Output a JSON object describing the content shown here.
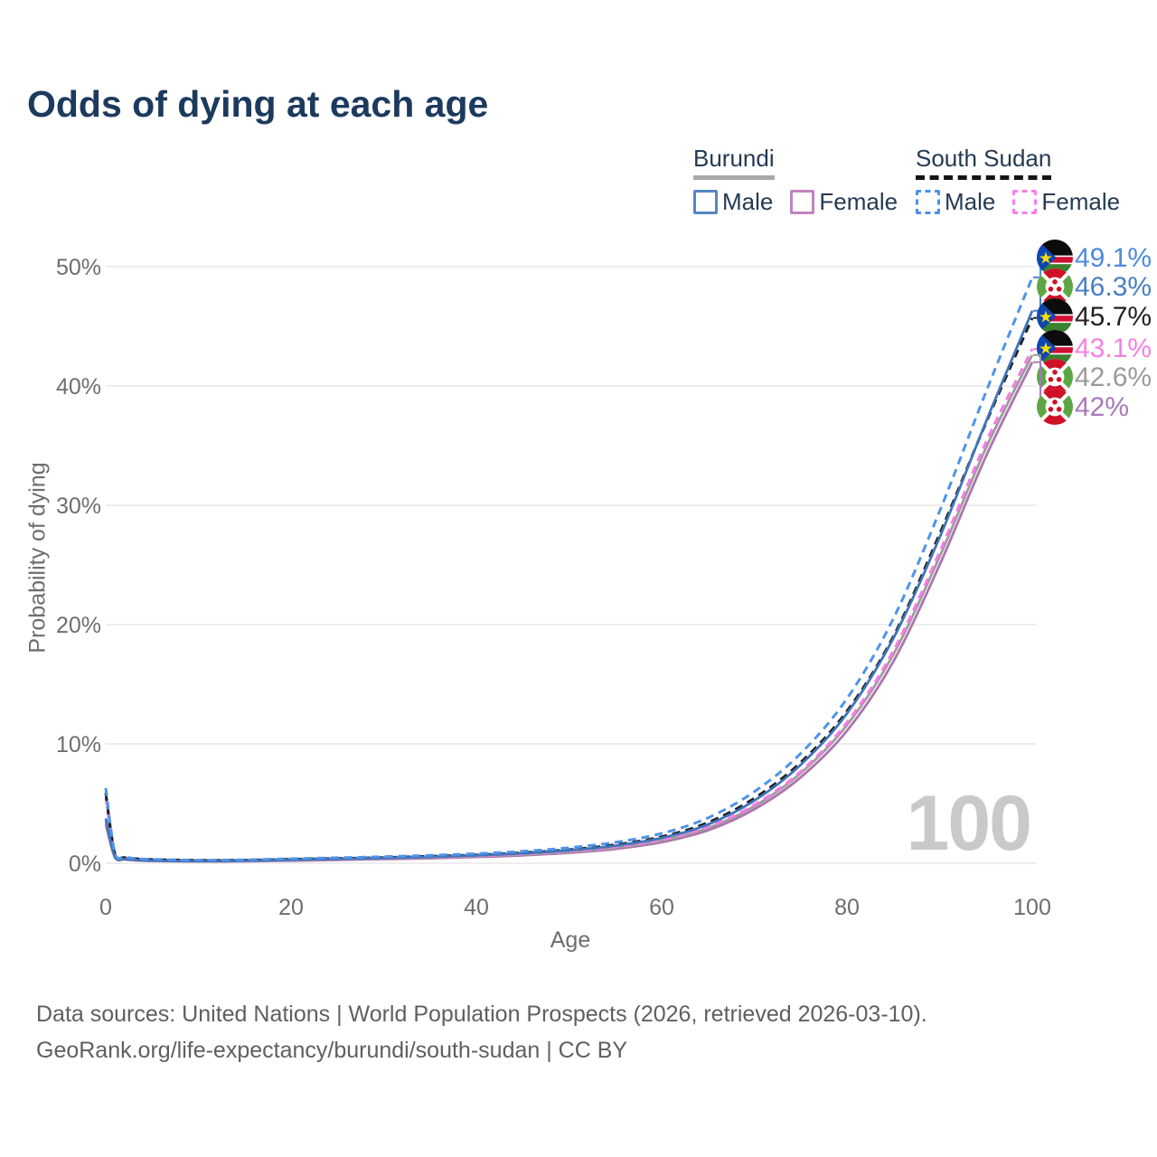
{
  "title": "Odds of dying at each age",
  "watermark_age": "100",
  "axes": {
    "x_label": "Age",
    "y_label": "Probability of dying"
  },
  "legend": {
    "groups": [
      {
        "name": "Burundi",
        "line_style": "solid",
        "underline_color": "#a9a9a9",
        "items": [
          {
            "label": "Male",
            "swatch_color": "#5585c5"
          },
          {
            "label": "Female",
            "swatch_color": "#c083bf"
          }
        ]
      },
      {
        "name": "South Sudan",
        "line_style": "dashed",
        "underline_color": "#141414",
        "items": [
          {
            "label": "Male",
            "swatch_color": "#4a90e8"
          },
          {
            "label": "Female",
            "swatch_color": "#fb7de8"
          }
        ]
      }
    ]
  },
  "footer": {
    "line1": "Data sources: United Nations | World Population Prospects (2026, retrieved 2026-03-10).",
    "line2": "GeoRank.org/life-expectancy/burundi/south-sudan | CC BY"
  },
  "chart_data": {
    "type": "line",
    "title": "Odds of dying at each age",
    "xlabel": "Age",
    "ylabel": "Probability of dying",
    "xlim": [
      0,
      100
    ],
    "ylim": [
      0,
      50
    ],
    "grid": "horizontal",
    "legend_position": "top-right",
    "xticks": [
      {
        "value": 0,
        "label": "0"
      },
      {
        "value": 20,
        "label": "20"
      },
      {
        "value": 40,
        "label": "40"
      },
      {
        "value": 60,
        "label": "60"
      },
      {
        "value": 80,
        "label": "80"
      },
      {
        "value": 100,
        "label": "100"
      }
    ],
    "yticks": [
      {
        "value": 0,
        "label": "0%"
      },
      {
        "value": 10,
        "label": "10%"
      },
      {
        "value": 20,
        "label": "20%"
      },
      {
        "value": 30,
        "label": "30%"
      },
      {
        "value": 40,
        "label": "40%"
      },
      {
        "value": 50,
        "label": "50%"
      }
    ],
    "x": [
      0,
      1,
      2,
      3,
      5,
      10,
      15,
      20,
      25,
      30,
      35,
      40,
      45,
      50,
      55,
      60,
      65,
      70,
      75,
      80,
      85,
      90,
      95,
      100
    ],
    "series": [
      {
        "id": "south-sudan-male",
        "name": "South Sudan Male",
        "country": "South Sudan",
        "sex": "male",
        "style": "dashed",
        "color": "#4e94ea",
        "end_label": "49.1%",
        "label_color": "#4b8ae0",
        "flag": "south-sudan",
        "values": [
          6.3,
          0.78,
          0.52,
          0.42,
          0.33,
          0.26,
          0.29,
          0.38,
          0.46,
          0.55,
          0.66,
          0.8,
          1.0,
          1.3,
          1.75,
          2.5,
          3.8,
          6.0,
          9.2,
          13.8,
          20.5,
          29.5,
          39.5,
          49.1
        ]
      },
      {
        "id": "burundi-male",
        "name": "Burundi Male",
        "country": "Burundi",
        "sex": "male",
        "style": "solid",
        "color": "#3f74b8",
        "end_label": "46.3%",
        "label_color": "#4a7fc4",
        "flag": "burundi",
        "values": [
          3.75,
          0.52,
          0.36,
          0.29,
          0.23,
          0.18,
          0.21,
          0.29,
          0.36,
          0.44,
          0.53,
          0.66,
          0.83,
          1.08,
          1.47,
          2.12,
          3.25,
          5.25,
          8.25,
          12.55,
          18.85,
          27.3,
          37.0,
          46.3
        ]
      },
      {
        "id": "south-sudan-both",
        "name": "South Sudan Both sexes",
        "country": "South Sudan",
        "sex": "both",
        "style": "dashed",
        "color": "#1f1f1f",
        "end_label": "45.7%",
        "label_color": "#222222",
        "flag": "south-sudan",
        "values": [
          5.9,
          0.72,
          0.48,
          0.39,
          0.31,
          0.24,
          0.26,
          0.33,
          0.4,
          0.48,
          0.58,
          0.7,
          0.88,
          1.14,
          1.55,
          2.22,
          3.42,
          5.45,
          8.45,
          12.75,
          19.0,
          27.6,
          36.9,
          45.7
        ]
      },
      {
        "id": "south-sudan-female",
        "name": "South Sudan Female",
        "country": "South Sudan",
        "sex": "female",
        "style": "dashed",
        "color": "#f87ce6",
        "end_label": "43.1%",
        "label_color": "#f580e2",
        "flag": "south-sudan",
        "values": [
          5.5,
          0.66,
          0.45,
          0.36,
          0.28,
          0.21,
          0.22,
          0.28,
          0.34,
          0.41,
          0.5,
          0.61,
          0.77,
          1.0,
          1.37,
          1.97,
          3.05,
          4.9,
          7.7,
          11.8,
          17.8,
          26.1,
          35.3,
          43.1
        ]
      },
      {
        "id": "burundi-both",
        "name": "Burundi Both sexes",
        "country": "Burundi",
        "sex": "both",
        "style": "solid",
        "color": "#9c9c9c",
        "end_label": "42.6%",
        "label_color": "#9a9a9a",
        "flag": "burundi",
        "values": [
          3.5,
          0.48,
          0.33,
          0.27,
          0.21,
          0.17,
          0.19,
          0.25,
          0.31,
          0.39,
          0.47,
          0.58,
          0.73,
          0.95,
          1.31,
          1.9,
          2.95,
          4.78,
          7.55,
          11.58,
          17.5,
          25.7,
          34.8,
          42.6
        ]
      },
      {
        "id": "burundi-female",
        "name": "Burundi Female",
        "country": "Burundi",
        "sex": "female",
        "style": "solid",
        "color": "#ad74ad",
        "end_label": "42%",
        "label_color": "#a878b8",
        "flag": "burundi",
        "values": [
          3.25,
          0.45,
          0.31,
          0.25,
          0.19,
          0.15,
          0.16,
          0.21,
          0.27,
          0.34,
          0.41,
          0.52,
          0.66,
          0.87,
          1.2,
          1.76,
          2.76,
          4.52,
          7.2,
          11.1,
          16.9,
          25.0,
          34.1,
          42.0
        ]
      }
    ]
  }
}
